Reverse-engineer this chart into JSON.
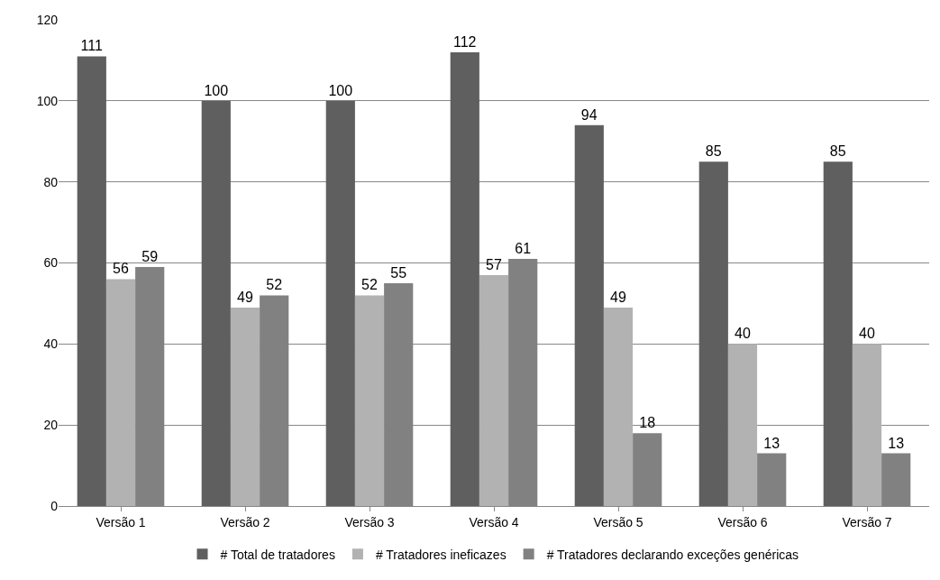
{
  "chart_data": {
    "type": "bar",
    "categories": [
      "Versão 1",
      "Versão 2",
      "Versão 3",
      "Versão 4",
      "Versão 5",
      "Versão 6",
      "Versão 7"
    ],
    "series": [
      {
        "name": "# Total de tratadores",
        "color": "#5f5f5f",
        "values": [
          111,
          100,
          100,
          112,
          94,
          85,
          85
        ]
      },
      {
        "name": "# Tratadores ineficazes",
        "color": "#b2b2b2",
        "values": [
          56,
          49,
          52,
          57,
          49,
          40,
          40
        ]
      },
      {
        "name": "# Tratadores declarando exceções genéricas",
        "color": "#818181",
        "values": [
          59,
          52,
          55,
          61,
          18,
          13,
          13
        ]
      }
    ],
    "ylim": [
      0,
      120
    ],
    "yticks": [
      0,
      20,
      40,
      60,
      80,
      100,
      120
    ],
    "grid": "y",
    "legend": "bottom",
    "data_labels": true
  }
}
